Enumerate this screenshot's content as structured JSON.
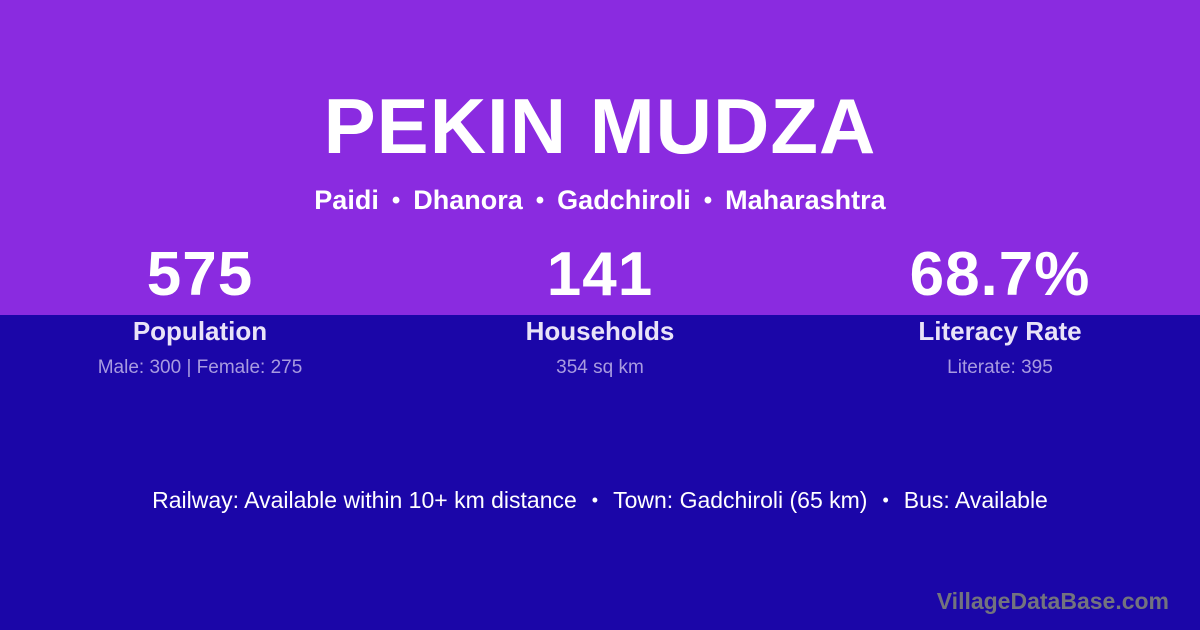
{
  "header": {
    "title": "PEKIN MUDZA",
    "separator": "•",
    "location": {
      "panchayat": "Paidi",
      "taluka": "Dhanora",
      "district": "Gadchiroli",
      "state": "Maharashtra"
    }
  },
  "stats": [
    {
      "value": "575",
      "label": "Population",
      "sub": "Male: 300 | Female: 275"
    },
    {
      "value": "141",
      "label": "Households",
      "sub": "354 sq km"
    },
    {
      "value": "68.7%",
      "label": "Literacy Rate",
      "sub": "Literate: 395"
    }
  ],
  "transport": {
    "railway": "Railway: Available within 10+ km distance",
    "separator": "•",
    "town": "Town: Gadchiroli (65 km)",
    "bus": "Bus: Available"
  },
  "footer": {
    "brand": "VillageDataBase.com"
  },
  "colors": {
    "accent_purple": "#8A2BE0",
    "deep_blue": "#1B06A8",
    "label_lavender": "#E9E3F8",
    "sub_lavender": "#A89BE0",
    "footer_gray": "#73737E"
  }
}
